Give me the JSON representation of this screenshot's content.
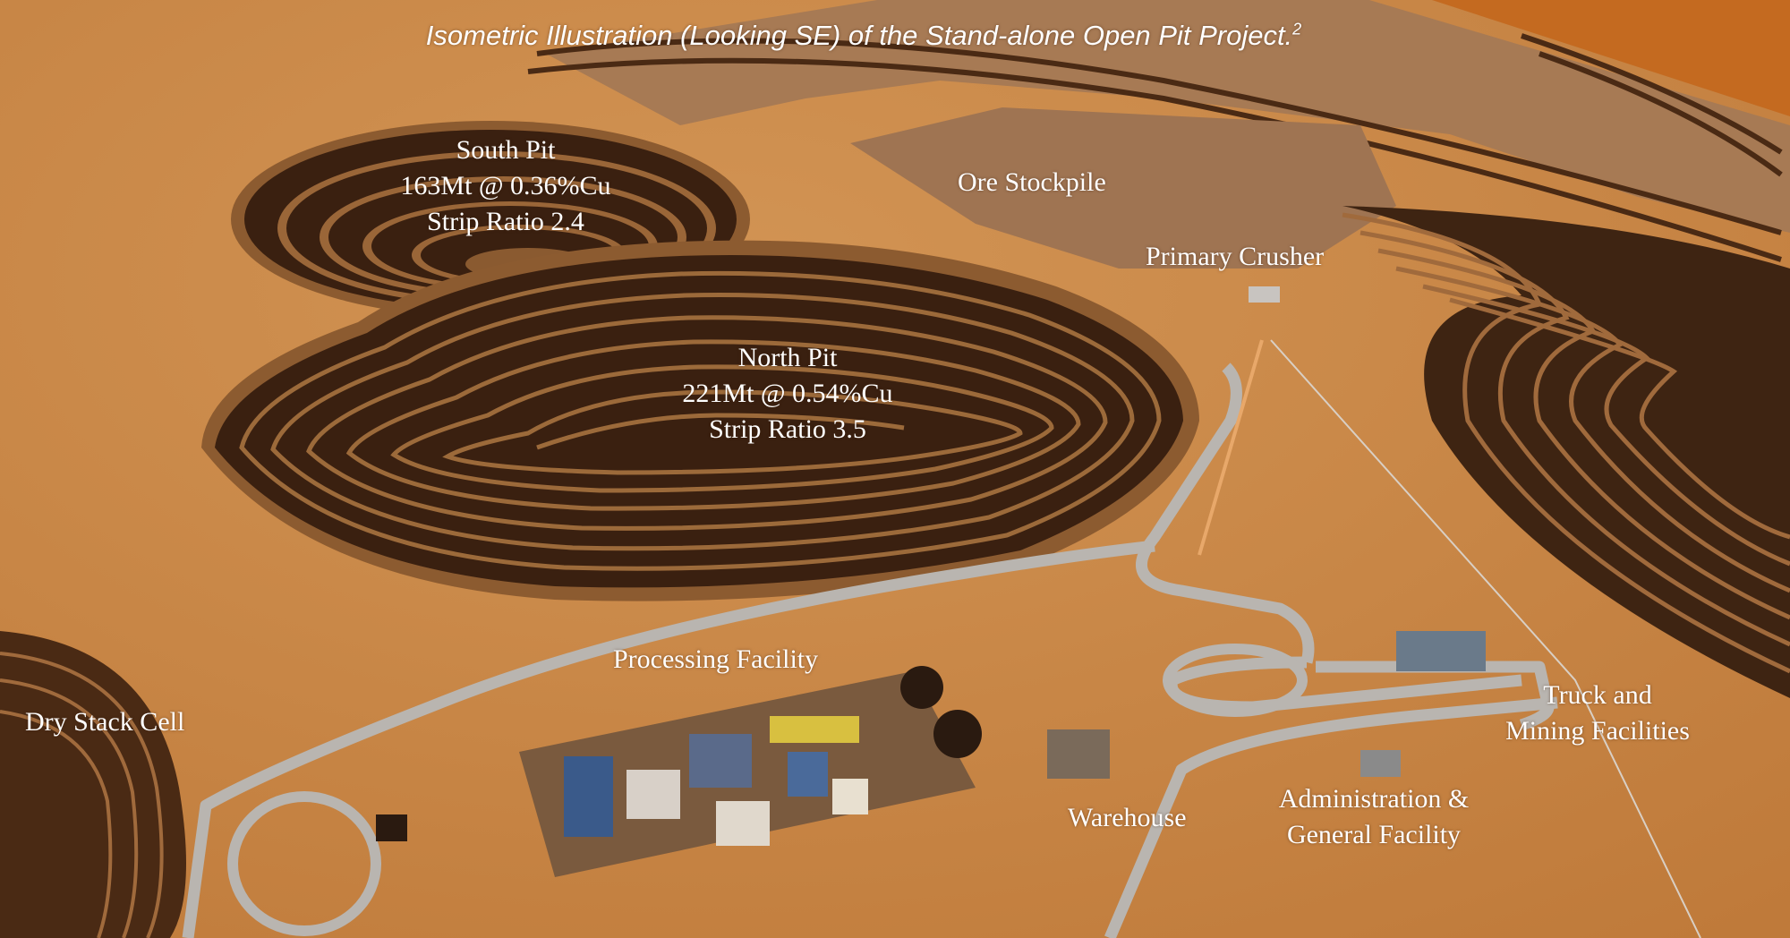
{
  "title": {
    "text": "Isometric Illustration (Looking SE) of the Stand-alone Open Pit Project.",
    "footnote": "2"
  },
  "labels": {
    "south_pit": [
      "South Pit",
      "163Mt @ 0.36%Cu",
      "Strip Ratio 2.4"
    ],
    "north_pit": [
      "North Pit",
      "221Mt @ 0.54%Cu",
      "Strip Ratio 3.5"
    ],
    "ore_stockpile": "Ore Stockpile",
    "primary_crusher": "Primary Crusher",
    "processing_facility": "Processing Facility",
    "dry_stack_cell": "Dry Stack Cell",
    "warehouse": "Warehouse",
    "administration": [
      "Administration &",
      "General Facility"
    ],
    "truck_mining": [
      "Truck and",
      "Mining Facilities"
    ]
  },
  "colors": {
    "terrain": "#c47d3d",
    "terrain_light": "#d4904c",
    "pit_dark": "#3a2010",
    "pit_bench": "#8a5a30",
    "dump_flat": "#a37650",
    "road": "#b8b4ae",
    "label_text": "#ffffff"
  }
}
